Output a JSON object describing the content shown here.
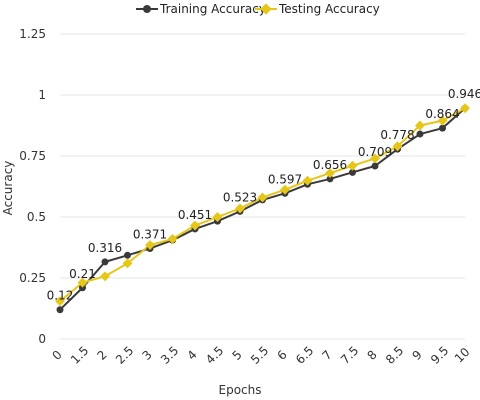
{
  "colors": {
    "training": "#3a3a3a",
    "testing": "#e6c619",
    "grid": "#e6e6e6"
  },
  "chart_data": {
    "type": "line",
    "xlabel": "Epochs",
    "ylabel": "Accuracy",
    "x": [
      "0",
      "1.5",
      "2",
      "2.5",
      "3",
      "3.5",
      "4",
      "4.5",
      "5",
      "5.5",
      "6",
      "6.5",
      "7",
      "7.5",
      "8",
      "8.5",
      "9",
      "9.5",
      "10"
    ],
    "ylim": [
      0,
      1.25
    ],
    "yticks": [
      "0",
      "0.25",
      "0.5",
      "0.75",
      "1",
      "1.25"
    ],
    "grid": true,
    "legend_position": "top-center",
    "series": [
      {
        "name": "Training Accuracy",
        "color": "#3a3a3a",
        "values": [
          0.12,
          0.21,
          0.316,
          0.343,
          0.371,
          0.405,
          0.451,
          0.483,
          0.523,
          0.57,
          0.597,
          0.634,
          0.656,
          0.683,
          0.709,
          0.778,
          0.84,
          0.864,
          0.946
        ]
      },
      {
        "name": "Testing Accuracy",
        "color": "#e6c619",
        "values": [
          0.155,
          0.231,
          0.257,
          0.31,
          0.385,
          0.41,
          0.465,
          0.5,
          0.535,
          0.58,
          0.612,
          0.649,
          0.68,
          0.71,
          0.74,
          0.79,
          0.875,
          0.895,
          0.946
        ]
      }
    ],
    "annotations": [
      "0.12",
      "0.21",
      "0.316",
      "0.371",
      "0.451",
      "0.523",
      "0.597",
      "0.656",
      "0.709",
      "0.778",
      "0.864",
      "0.946"
    ]
  }
}
